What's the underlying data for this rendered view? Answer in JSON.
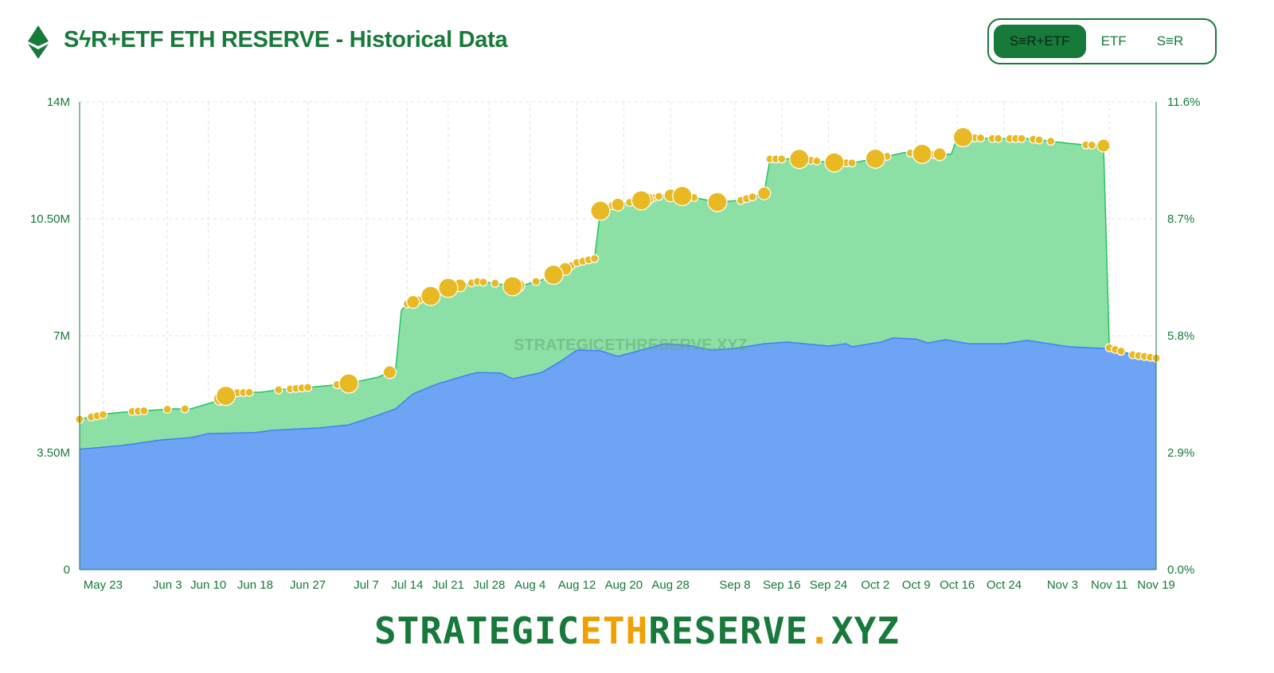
{
  "header": {
    "title": "SϟR+ETF ETH RESERVE - Historical Data",
    "icon": "ethereum-icon"
  },
  "toggle": {
    "options": [
      "S≡R+ETF",
      "ETF",
      "S≡R"
    ],
    "selected": "S≡R+ETF"
  },
  "watermark": "STRATEGICETHRESERVE.XYZ",
  "brand": {
    "part1": "STRATEGIC",
    "part2": "ETH",
    "part3": "RESERVE",
    "dot": ".",
    "part4": "XYZ"
  },
  "colors": {
    "accent": "#17793a",
    "total_fill": "#8ce0a6",
    "total_line": "#22c55e",
    "etf_fill": "#6fa4f5",
    "etf_line": "#3b82f6",
    "bubble": "#e9b923",
    "orange": "#f0a000"
  },
  "chart_data": {
    "type": "area",
    "x_unit": "days since May 19",
    "xlim": [
      0,
      184
    ],
    "ylim": [
      0,
      14
    ],
    "y_unit": "M ETH",
    "y_ticks": [
      {
        "v": 0,
        "label": "0"
      },
      {
        "v": 3.5,
        "label": "3.50M"
      },
      {
        "v": 7,
        "label": "7M"
      },
      {
        "v": 10.5,
        "label": "10.50M"
      },
      {
        "v": 14,
        "label": "14M"
      }
    ],
    "y2_ticks": [
      "0.0%",
      "2.9%",
      "5.8%",
      "8.7%",
      "11.6%"
    ],
    "x_ticks": [
      {
        "d": 4,
        "label": "May 23"
      },
      {
        "d": 15,
        "label": "Jun 3"
      },
      {
        "d": 22,
        "label": "Jun 10"
      },
      {
        "d": 30,
        "label": "Jun 18"
      },
      {
        "d": 39,
        "label": "Jun 27"
      },
      {
        "d": 49,
        "label": "Jul 7"
      },
      {
        "d": 56,
        "label": "Jul 14"
      },
      {
        "d": 63,
        "label": "Jul 21"
      },
      {
        "d": 70,
        "label": "Jul 28"
      },
      {
        "d": 77,
        "label": "Aug 4"
      },
      {
        "d": 85,
        "label": "Aug 12"
      },
      {
        "d": 93,
        "label": "Aug 20"
      },
      {
        "d": 101,
        "label": "Aug 28"
      },
      {
        "d": 112,
        "label": "Sep 8"
      },
      {
        "d": 120,
        "label": "Sep 16"
      },
      {
        "d": 128,
        "label": "Sep 24"
      },
      {
        "d": 136,
        "label": "Oct 2"
      },
      {
        "d": 143,
        "label": "Oct 9"
      },
      {
        "d": 150,
        "label": "Oct 16"
      },
      {
        "d": 158,
        "label": "Oct 24"
      },
      {
        "d": 168,
        "label": "Nov 3"
      },
      {
        "d": 176,
        "label": "Nov 11"
      },
      {
        "d": 184,
        "label": "Nov 19"
      }
    ],
    "series": [
      {
        "name": "SER+ETF",
        "points": [
          [
            0,
            4.5
          ],
          [
            5,
            4.67
          ],
          [
            8,
            4.72
          ],
          [
            16,
            4.81
          ],
          [
            19,
            4.81
          ],
          [
            23,
            5.02
          ],
          [
            26,
            5.29
          ],
          [
            31,
            5.31
          ],
          [
            34,
            5.38
          ],
          [
            41,
            5.48
          ],
          [
            46,
            5.57
          ],
          [
            51,
            5.76
          ],
          [
            54,
            5.98
          ],
          [
            55,
            7.76
          ],
          [
            56,
            7.95
          ],
          [
            60,
            8.19
          ],
          [
            63,
            8.43
          ],
          [
            68,
            8.62
          ],
          [
            71,
            8.57
          ],
          [
            74,
            8.48
          ],
          [
            76,
            8.52
          ],
          [
            79,
            8.67
          ],
          [
            82,
            8.9
          ],
          [
            85,
            9.19
          ],
          [
            88,
            9.31
          ],
          [
            89,
            10.74
          ],
          [
            90,
            10.86
          ],
          [
            96,
            11.05
          ],
          [
            100,
            11.21
          ],
          [
            104,
            11.17
          ],
          [
            109,
            11.0
          ],
          [
            113,
            11.05
          ],
          [
            117,
            11.26
          ],
          [
            118,
            12.29
          ],
          [
            123,
            12.29
          ],
          [
            128,
            12.19
          ],
          [
            132,
            12.17
          ],
          [
            137,
            12.33
          ],
          [
            141,
            12.48
          ],
          [
            145,
            12.43
          ],
          [
            149,
            12.43
          ],
          [
            150,
            12.95
          ],
          [
            156,
            12.9
          ],
          [
            162,
            12.9
          ],
          [
            169,
            12.76
          ],
          [
            172,
            12.71
          ],
          [
            175,
            12.69
          ],
          [
            176,
            6.64
          ],
          [
            180,
            6.43
          ],
          [
            184,
            6.33
          ]
        ]
      },
      {
        "name": "ETF",
        "points": [
          [
            0,
            3.6
          ],
          [
            7,
            3.71
          ],
          [
            14,
            3.88
          ],
          [
            19,
            3.95
          ],
          [
            22,
            4.07
          ],
          [
            30,
            4.1
          ],
          [
            33,
            4.17
          ],
          [
            41,
            4.24
          ],
          [
            46,
            4.33
          ],
          [
            51,
            4.62
          ],
          [
            54,
            4.81
          ],
          [
            57,
            5.26
          ],
          [
            61,
            5.55
          ],
          [
            66,
            5.81
          ],
          [
            68,
            5.9
          ],
          [
            72,
            5.88
          ],
          [
            74,
            5.71
          ],
          [
            79,
            5.9
          ],
          [
            82,
            6.21
          ],
          [
            85,
            6.57
          ],
          [
            89,
            6.55
          ],
          [
            92,
            6.38
          ],
          [
            96,
            6.57
          ],
          [
            100,
            6.76
          ],
          [
            104,
            6.71
          ],
          [
            108,
            6.57
          ],
          [
            112,
            6.62
          ],
          [
            117,
            6.76
          ],
          [
            121,
            6.81
          ],
          [
            128,
            6.69
          ],
          [
            131,
            6.76
          ],
          [
            132,
            6.67
          ],
          [
            137,
            6.81
          ],
          [
            139,
            6.93
          ],
          [
            143,
            6.9
          ],
          [
            145,
            6.78
          ],
          [
            148,
            6.88
          ],
          [
            152,
            6.76
          ],
          [
            158,
            6.76
          ],
          [
            162,
            6.86
          ],
          [
            169,
            6.67
          ],
          [
            175,
            6.62
          ],
          [
            176,
            6.64
          ],
          [
            180,
            6.43
          ],
          [
            184,
            6.28
          ]
        ]
      }
    ],
    "bubbles_small_days": [
      0,
      2,
      3,
      4,
      9,
      10,
      11,
      15,
      18,
      26,
      27,
      28,
      29,
      34,
      36,
      37,
      38,
      39,
      44,
      45,
      56,
      58,
      62,
      65,
      67,
      68,
      69,
      71,
      78,
      80,
      84,
      85,
      86,
      87,
      88,
      91,
      94,
      95,
      98,
      99,
      101,
      104,
      105,
      113,
      114,
      115,
      117,
      118,
      119,
      120,
      125,
      126,
      130,
      131,
      132,
      137,
      138,
      142,
      143,
      145,
      146,
      150,
      152,
      153,
      154,
      156,
      157,
      159,
      160,
      161,
      163,
      164,
      166,
      172,
      173,
      176,
      177,
      178,
      180,
      181,
      182,
      183,
      184
    ],
    "bubbles_large_days": [
      25,
      46,
      60,
      63,
      74,
      81,
      89,
      96,
      103,
      109,
      123,
      129,
      136,
      144,
      151
    ],
    "bubbles_medium_days": [
      24,
      53,
      57,
      65,
      75,
      83,
      92,
      97,
      101,
      117,
      147,
      175
    ]
  }
}
